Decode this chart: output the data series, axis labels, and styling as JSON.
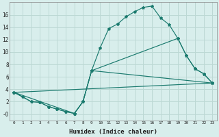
{
  "xlabel": "Humidex (Indice chaleur)",
  "bg_color": "#d8eeec",
  "grid_color": "#bcd8d4",
  "line_color": "#1a7a6e",
  "line1_x": [
    0,
    1,
    2,
    3,
    4,
    5,
    6,
    7,
    8,
    9,
    10,
    11,
    12,
    13,
    14,
    15,
    16,
    17,
    18,
    19,
    20,
    21,
    22,
    23
  ],
  "line1_y": [
    3.5,
    2.8,
    2.0,
    1.9,
    1.2,
    0.8,
    0.4,
    0.1,
    2.0,
    7.0,
    10.7,
    13.8,
    14.5,
    15.7,
    16.5,
    17.2,
    17.4,
    15.5,
    14.4,
    12.2,
    9.4,
    7.3,
    6.5,
    5.0
  ],
  "line2_x": [
    0,
    2,
    3,
    4,
    5,
    6,
    7,
    8,
    9,
    19,
    20,
    21,
    22,
    23
  ],
  "line2_y": [
    3.5,
    2.0,
    1.9,
    1.2,
    0.8,
    0.4,
    0.1,
    2.0,
    7.0,
    12.2,
    9.4,
    7.3,
    6.5,
    5.0
  ],
  "line3_x": [
    0,
    7,
    8,
    9,
    23
  ],
  "line3_y": [
    3.5,
    0.1,
    2.0,
    7.0,
    5.0
  ],
  "line4_x": [
    0,
    23
  ],
  "line4_y": [
    3.5,
    5.0
  ],
  "ylim": [
    -1.0,
    18.0
  ],
  "xlim": [
    -0.5,
    23.5
  ],
  "yticks": [
    0,
    2,
    4,
    6,
    8,
    10,
    12,
    14,
    16
  ],
  "ytick_labels": [
    "-0",
    "2",
    "4",
    "6",
    "8",
    "10",
    "12",
    "14",
    "16"
  ],
  "xticks": [
    0,
    1,
    2,
    3,
    4,
    5,
    6,
    7,
    8,
    9,
    10,
    11,
    12,
    13,
    14,
    15,
    16,
    17,
    18,
    19,
    20,
    21,
    22,
    23
  ]
}
